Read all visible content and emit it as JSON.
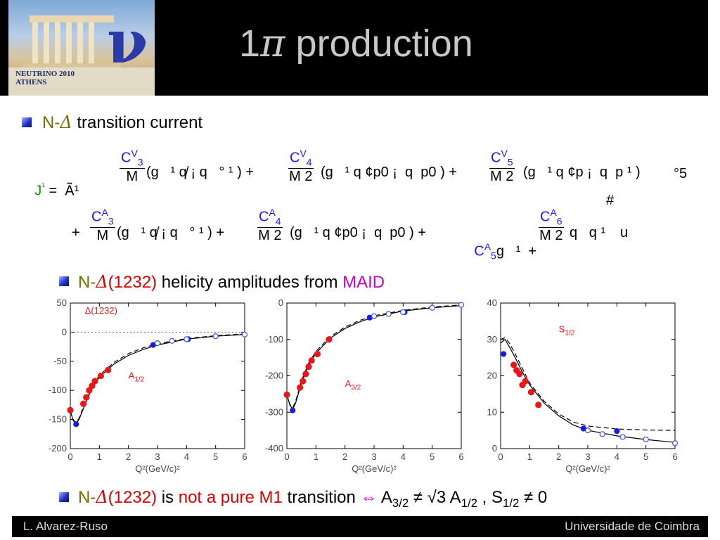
{
  "logo": {
    "line1": "NEUTRINO  2010",
    "line2": "ATHENS",
    "nu": "ν"
  },
  "title": {
    "pre": "1",
    "pi": "π",
    "post": " production"
  },
  "bullet1": {
    "a": "N-",
    "d": "Δ",
    "b": " transition current"
  },
  "eq": {
    "l1_pre": "J",
    "l1_mu": "¹",
    "l1_mid": " =  Ã¹",
    "t1_num": "C",
    "t1_sup": "V",
    "t1_sub": "3",
    "t1_den": "M",
    "t1_body": "(g   ¹ q̸ ¡ q   ° ¹ ) +",
    "t2_num": "C",
    "t2_sup": "V",
    "t2_sub": "4",
    "t2_den": "M 2",
    "t2_body": "(g   ¹ q ¢p0 ¡  q  p0 ) +",
    "t3_num": "C",
    "t3_sup": "V",
    "t3_sub": "5",
    "t3_den": "M 2",
    "t3_body": "(g   ¹ q ¢p ¡  q  p ¹ )",
    "t3_tail": "°5",
    "hash": "#",
    "l2_plus": "+",
    "a1_num": "C",
    "a1_sup": "A",
    "a1_sub": "3",
    "a1_den": "M",
    "a1_body": "(g   ¹ q̸ ¡ q   ° ¹ ) +",
    "a2_num": "C",
    "a2_sup": "A",
    "a2_sub": "4",
    "a2_den": "M 2",
    "a2_body": "(g   ¹ q ¢p0 ¡  q  p0 ) +",
    "a3_c": "C",
    "a3_sup": "A",
    "a3_sub": "5",
    "a3_body": "g   ¹  +",
    "a4_num": "C",
    "a4_sup": "A",
    "a4_sub": "6",
    "a4_den": "M 2",
    "a4_body": "q   q ¹",
    "tail_u": "u"
  },
  "bullet2": {
    "a": "N-",
    "d": "Δ",
    "c": "(1232)",
    "b": " helicity amplitudes from ",
    "m": "MAID"
  },
  "bullet3": {
    "a": "N-",
    "d": "Δ",
    "c": "(1232)",
    "b": " is ",
    "r": "not a pure M1",
    "e": " transition ",
    "iff": "⇔",
    "f": " A",
    "f_sub": "3/2",
    "g": " ≠ √3 A",
    "g_sub": "1/2",
    "h": " , S",
    "h_sub": "1/2",
    "i": " ≠ 0"
  },
  "footer": {
    "left": "L. Alvarez-Ruso",
    "right": "Universidade de Coimbra"
  },
  "colors": {
    "red_points": "#e81818",
    "blue_points": "#1a1ae6",
    "blue_open": "#3355ee",
    "curve": "#000000"
  },
  "chart_data": [
    {
      "type": "scatter",
      "xlabel": "Q²(GeV/c)²",
      "xlim": [
        0,
        6
      ],
      "ylim": [
        -200,
        50
      ],
      "xticks": [
        0,
        1,
        2,
        3,
        4,
        5,
        6
      ],
      "yticks": [
        -200,
        -150,
        -100,
        -50,
        0,
        50
      ],
      "annotation": "Δ(1232)",
      "series_label": "A1/2",
      "series": [
        {
          "values": [
            [
              0.0,
              -134
            ],
            [
              0.45,
              -123
            ],
            [
              0.55,
              -112
            ],
            [
              0.65,
              -100
            ],
            [
              0.75,
              -92
            ],
            [
              0.85,
              -84
            ],
            [
              1.05,
              -75
            ],
            [
              1.3,
              -65
            ]
          ]
        },
        {
          "values": [
            [
              0.2,
              -158
            ],
            [
              2.85,
              -22
            ],
            [
              4.05,
              -12
            ]
          ]
        },
        {
          "values": [
            [
              3.0,
              -19
            ],
            [
              3.5,
              -15
            ],
            [
              4.0,
              -12
            ],
            [
              5.0,
              -7
            ],
            [
              6.0,
              -4
            ]
          ]
        }
      ],
      "curves": [
        {
          "values": [
            [
              0,
              -136
            ],
            [
              0.1,
              -152
            ],
            [
              0.2,
              -157
            ],
            [
              0.3,
              -150
            ],
            [
              0.5,
              -125
            ],
            [
              0.75,
              -96
            ],
            [
              1.0,
              -77
            ],
            [
              1.5,
              -55
            ],
            [
              2.0,
              -40
            ],
            [
              2.5,
              -30
            ],
            [
              3.0,
              -22
            ],
            [
              4.0,
              -12
            ],
            [
              5.0,
              -7
            ],
            [
              6.0,
              -4
            ]
          ]
        },
        {
          "values": [
            [
              0,
              -136
            ],
            [
              0.1,
              -151
            ],
            [
              0.2,
              -155
            ],
            [
              0.3,
              -148
            ],
            [
              0.5,
              -122
            ],
            [
              0.75,
              -93
            ],
            [
              1.0,
              -74
            ],
            [
              1.5,
              -52
            ],
            [
              2.0,
              -37
            ],
            [
              2.5,
              -27
            ],
            [
              3.0,
              -20
            ],
            [
              4.0,
              -11
            ],
            [
              5.0,
              -6
            ],
            [
              6.0,
              -3
            ]
          ]
        }
      ]
    },
    {
      "type": "scatter",
      "xlabel": "Q²(GeV/c)²",
      "xlim": [
        0,
        6
      ],
      "ylim": [
        -400,
        0
      ],
      "xticks": [
        0,
        1,
        2,
        3,
        4,
        5,
        6
      ],
      "yticks": [
        -400,
        -300,
        -200,
        -100,
        0
      ],
      "series_label": "A3/2",
      "series": [
        {
          "values": [
            [
              0.0,
              -252
            ],
            [
              0.45,
              -232
            ],
            [
              0.55,
              -215
            ],
            [
              0.65,
              -195
            ],
            [
              0.75,
              -175
            ],
            [
              0.85,
              -158
            ],
            [
              1.05,
              -140
            ],
            [
              1.45,
              -100
            ]
          ]
        },
        {
          "values": [
            [
              0.2,
              -295
            ],
            [
              2.85,
              -40
            ],
            [
              4.05,
              -25
            ]
          ]
        },
        {
          "values": [
            [
              3.0,
              -36
            ],
            [
              3.5,
              -30
            ],
            [
              4.0,
              -25
            ],
            [
              5.0,
              -13
            ],
            [
              6.0,
              -5
            ]
          ]
        }
      ],
      "curves": [
        {
          "values": [
            [
              0,
              -250
            ],
            [
              0.1,
              -280
            ],
            [
              0.2,
              -292
            ],
            [
              0.3,
              -275
            ],
            [
              0.5,
              -220
            ],
            [
              0.75,
              -170
            ],
            [
              1.0,
              -138
            ],
            [
              1.5,
              -96
            ],
            [
              2.0,
              -70
            ],
            [
              2.5,
              -52
            ],
            [
              3.0,
              -38
            ],
            [
              4.0,
              -22
            ],
            [
              5.0,
              -13
            ],
            [
              6.0,
              -7
            ]
          ]
        },
        {
          "values": [
            [
              0,
              -250
            ],
            [
              0.1,
              -278
            ],
            [
              0.2,
              -288
            ],
            [
              0.3,
              -270
            ],
            [
              0.5,
              -214
            ],
            [
              0.75,
              -165
            ],
            [
              1.0,
              -133
            ],
            [
              1.5,
              -92
            ],
            [
              2.0,
              -66
            ],
            [
              2.5,
              -48
            ],
            [
              3.0,
              -35
            ],
            [
              4.0,
              -20
            ],
            [
              5.0,
              -11
            ],
            [
              6.0,
              -5
            ]
          ]
        }
      ]
    },
    {
      "type": "scatter",
      "xlabel": "Q²(GeV/c)²",
      "xlim": [
        0,
        6
      ],
      "ylim": [
        0,
        40
      ],
      "xticks": [
        0,
        1,
        2,
        3,
        4,
        5,
        6
      ],
      "yticks": [
        0,
        10,
        20,
        30,
        40
      ],
      "series_label": "S1/2",
      "series": [
        {
          "values": [
            [
              0.45,
              23
            ],
            [
              0.55,
              21.5
            ],
            [
              0.65,
              20.5
            ],
            [
              0.75,
              17.5
            ],
            [
              0.85,
              18.5
            ],
            [
              1.05,
              15.5
            ],
            [
              1.3,
              12
            ]
          ]
        },
        {
          "values": [
            [
              0.1,
              26
            ],
            [
              2.85,
              5.5
            ],
            [
              4.0,
              4.8
            ]
          ]
        },
        {
          "values": [
            [
              3.0,
              5
            ],
            [
              3.5,
              4
            ],
            [
              4.2,
              3.2
            ],
            [
              5.0,
              2.5
            ],
            [
              6.0,
              1.5
            ]
          ]
        }
      ],
      "curves": [
        {
          "values": [
            [
              0,
              29
            ],
            [
              0.15,
              30
            ],
            [
              0.3,
              28
            ],
            [
              0.5,
              25
            ],
            [
              0.75,
              21
            ],
            [
              1.0,
              17.5
            ],
            [
              1.5,
              12.5
            ],
            [
              2.0,
              9
            ],
            [
              2.5,
              6.5
            ],
            [
              3.0,
              5
            ],
            [
              4.0,
              3.5
            ],
            [
              5.0,
              2.5
            ],
            [
              6.0,
              1.7
            ]
          ]
        },
        {
          "values": [
            [
              0,
              30
            ],
            [
              0.15,
              30.5
            ],
            [
              0.3,
              29
            ],
            [
              0.5,
              26
            ],
            [
              0.75,
              22
            ],
            [
              1.0,
              18
            ],
            [
              1.5,
              13
            ],
            [
              2.0,
              9.5
            ],
            [
              2.5,
              7.3
            ],
            [
              3.0,
              6.2
            ],
            [
              4.0,
              5.4
            ],
            [
              5.0,
              5.1
            ],
            [
              6.0,
              5.0
            ]
          ]
        }
      ]
    }
  ]
}
